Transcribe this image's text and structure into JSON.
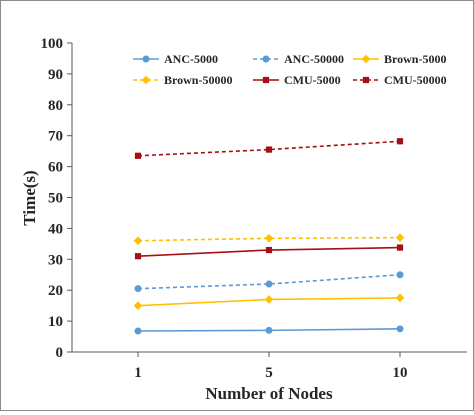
{
  "chart_data": {
    "type": "line",
    "title": "",
    "xlabel": "Number of Nodes",
    "ylabel": "Time(s)",
    "categories": [
      "1",
      "5",
      "10"
    ],
    "ylim": [
      0,
      100
    ],
    "yticks": [
      "0",
      "10",
      "20",
      "30",
      "40",
      "50",
      "60",
      "70",
      "80",
      "90",
      "100"
    ],
    "grid": false,
    "legend_position": "top",
    "series": [
      {
        "name": "ANC-5000",
        "values": [
          6.8,
          7.0,
          7.5
        ],
        "color": "#5b9bd5",
        "dashed": false,
        "marker": "circle"
      },
      {
        "name": "ANC-50000",
        "values": [
          20.5,
          22.0,
          25.0
        ],
        "color": "#5b9bd5",
        "dashed": true,
        "marker": "circle"
      },
      {
        "name": "Brown-5000",
        "values": [
          15.0,
          17.0,
          17.5
        ],
        "color": "#ffc000",
        "dashed": false,
        "marker": "diamond"
      },
      {
        "name": "Brown-50000",
        "values": [
          36.0,
          36.8,
          37.0
        ],
        "color": "#ffc000",
        "dashed": true,
        "marker": "diamond"
      },
      {
        "name": "CMU-5000",
        "values": [
          31.0,
          33.0,
          33.8
        ],
        "color": "#a50f15",
        "dashed": false,
        "marker": "square"
      },
      {
        "name": "CMU-50000",
        "values": [
          63.5,
          65.5,
          68.2
        ],
        "color": "#a50f15",
        "dashed": true,
        "marker": "square"
      }
    ]
  }
}
